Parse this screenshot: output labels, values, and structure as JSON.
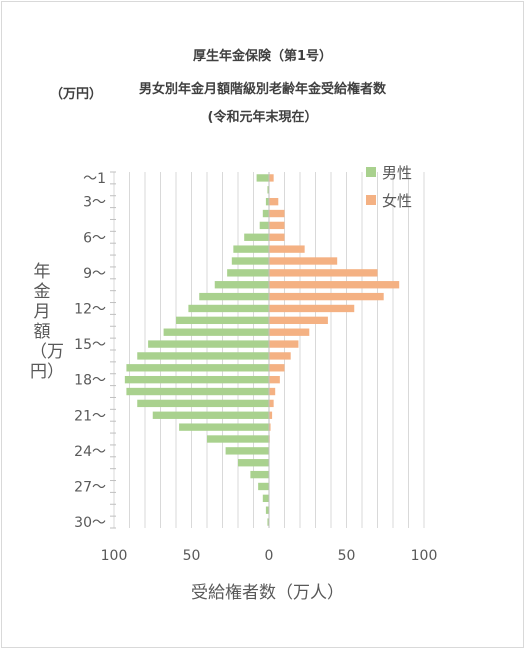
{
  "chart_data": {
    "type": "bar",
    "orientation": "horizontal-butterfly",
    "title_lines": [
      "厚生年金保険（第1号）",
      "男女別年金月額階級別老齢年金受給権者数",
      "(令和元年末現在）"
    ],
    "unit_label": "（万円）",
    "ylabel": "年金月額（万円）",
    "xlabel": "受給権者数（万人）",
    "y_tick_labels": [
      {
        "index": 0,
        "label": "～1"
      },
      {
        "index": 2,
        "label": "3～"
      },
      {
        "index": 5,
        "label": "6～"
      },
      {
        "index": 8,
        "label": "9～"
      },
      {
        "index": 11,
        "label": "12～"
      },
      {
        "index": 14,
        "label": "15～"
      },
      {
        "index": 17,
        "label": "18～"
      },
      {
        "index": 20,
        "label": "21～"
      },
      {
        "index": 23,
        "label": "24～"
      },
      {
        "index": 26,
        "label": "27～"
      },
      {
        "index": 29,
        "label": "30～"
      }
    ],
    "x_tick_labels": [
      "100",
      "50",
      "0",
      "50",
      "100"
    ],
    "xlim": [
      -100,
      100
    ],
    "grid": true,
    "legend_position": "top-right",
    "series": [
      {
        "name": "男性",
        "color": "#a9d18e",
        "values": [
          8,
          1,
          2,
          4,
          6,
          16,
          23,
          24,
          27,
          35,
          45,
          52,
          60,
          68,
          78,
          85,
          92,
          93,
          92,
          85,
          75,
          58,
          40,
          28,
          20,
          12,
          7,
          4,
          2,
          1
        ]
      },
      {
        "name": "女性",
        "color": "#f4b183",
        "values": [
          3,
          0,
          6,
          10,
          10,
          10,
          23,
          44,
          70,
          84,
          74,
          55,
          38,
          26,
          19,
          14,
          10,
          7,
          4,
          3,
          2,
          1,
          0.5,
          0.3,
          0.2,
          0.1,
          0.1,
          0,
          0,
          0
        ]
      }
    ]
  }
}
